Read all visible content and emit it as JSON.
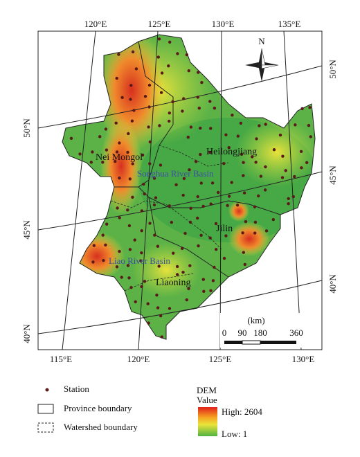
{
  "map": {
    "lon_labels_top": [
      "120°E",
      "125°E",
      "130°E",
      "135°E"
    ],
    "lon_labels_bottom": [
      "115°E",
      "120°E",
      "125°E",
      "130°E"
    ],
    "lat_labels_left": [
      "50°N",
      "45°N",
      "40°N"
    ],
    "lat_labels_right": [
      "50°N",
      "45°N",
      "40°N"
    ],
    "regions": [
      "Nei Mongol",
      "Heilongjiang",
      "Jilin",
      "Liaoning"
    ],
    "basins": [
      "Songhua River Basin",
      "Liao River Basin"
    ],
    "north": "N",
    "scale": {
      "unit": "(km)",
      "ticks": [
        0,
        90,
        180,
        360
      ]
    }
  },
  "legend": {
    "station": "Station",
    "province": "Province boundary",
    "watershed": "Watershed boundary",
    "dem_title": "DEM",
    "dem_subtitle": "Value",
    "high": "High: 2604",
    "low": "Low: 1"
  }
}
